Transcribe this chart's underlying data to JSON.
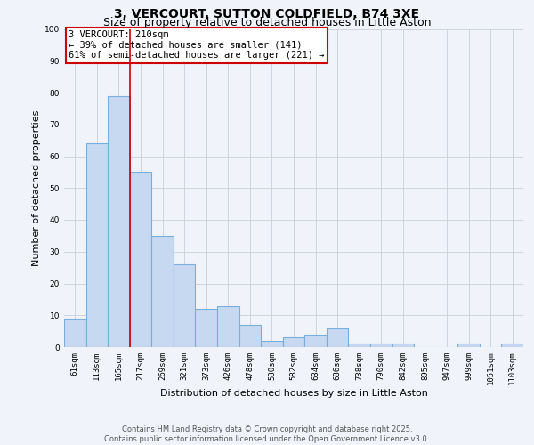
{
  "title_line1": "3, VERCOURT, SUTTON COLDFIELD, B74 3XE",
  "title_line2": "Size of property relative to detached houses in Little Aston",
  "xlabel": "Distribution of detached houses by size in Little Aston",
  "ylabel": "Number of detached properties",
  "categories": [
    "61sqm",
    "113sqm",
    "165sqm",
    "217sqm",
    "269sqm",
    "321sqm",
    "373sqm",
    "426sqm",
    "478sqm",
    "530sqm",
    "582sqm",
    "634sqm",
    "686sqm",
    "738sqm",
    "790sqm",
    "842sqm",
    "895sqm",
    "947sqm",
    "999sqm",
    "1051sqm",
    "1103sqm"
  ],
  "values": [
    9,
    64,
    79,
    55,
    35,
    26,
    12,
    13,
    7,
    2,
    3,
    4,
    6,
    1,
    1,
    1,
    0,
    0,
    1,
    0,
    1
  ],
  "bar_color": "#c6d9f0",
  "bar_edge_color": "#7aafdc",
  "vline_color": "#cc0000",
  "annotation_title": "3 VERCOURT: 210sqm",
  "annotation_line1": "← 39% of detached houses are smaller (141)",
  "annotation_line2": "61% of semi-detached houses are larger (221) →",
  "annotation_box_color": "#cc0000",
  "ylim": [
    0,
    100
  ],
  "yticks": [
    0,
    10,
    20,
    30,
    40,
    50,
    60,
    70,
    80,
    90,
    100
  ],
  "background_color": "#f0f4fa",
  "grid_color": "#c8d0dc",
  "footer_line1": "Contains HM Land Registry data © Crown copyright and database right 2025.",
  "footer_line2": "Contains public sector information licensed under the Open Government Licence v3.0.",
  "title_fontsize": 10,
  "subtitle_fontsize": 9,
  "axis_label_fontsize": 8,
  "tick_fontsize": 6.5,
  "annotation_fontsize": 7.5,
  "footer_fontsize": 6
}
